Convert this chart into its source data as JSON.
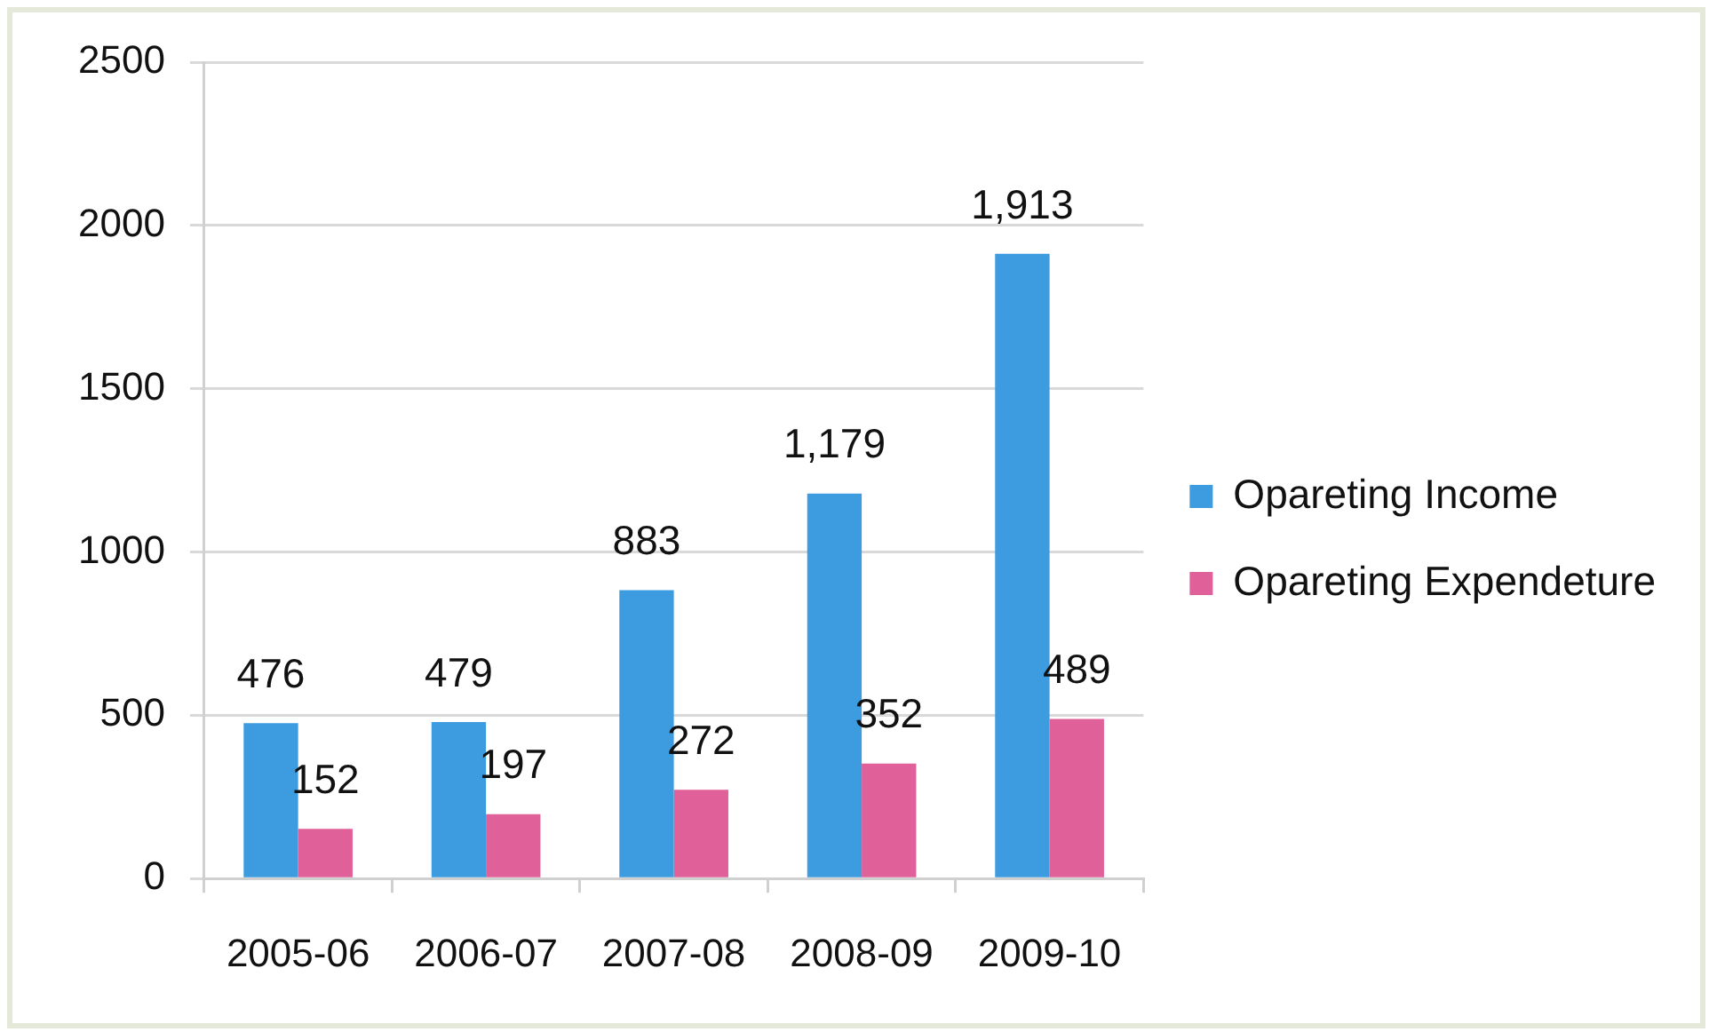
{
  "chart_data": {
    "type": "bar",
    "categories": [
      "2005-06",
      "2006-07",
      "2007-08",
      "2008-09",
      "2009-10"
    ],
    "series": [
      {
        "name": "Opareting Income",
        "color": "#3d9be0",
        "values": [
          476,
          479,
          883,
          1179,
          1913
        ],
        "value_labels": [
          "476",
          "479",
          "883",
          "1,179",
          "1,913"
        ]
      },
      {
        "name": "Opareting Expendeture",
        "color": "#e0609a",
        "values": [
          152,
          197,
          272,
          352,
          489
        ],
        "value_labels": [
          "152",
          "197",
          "272",
          "352",
          "489"
        ]
      }
    ],
    "ylim": [
      0,
      2500
    ],
    "yticks": [
      0,
      500,
      1000,
      1500,
      2000,
      2500
    ],
    "grid": "y",
    "legend": "right"
  }
}
